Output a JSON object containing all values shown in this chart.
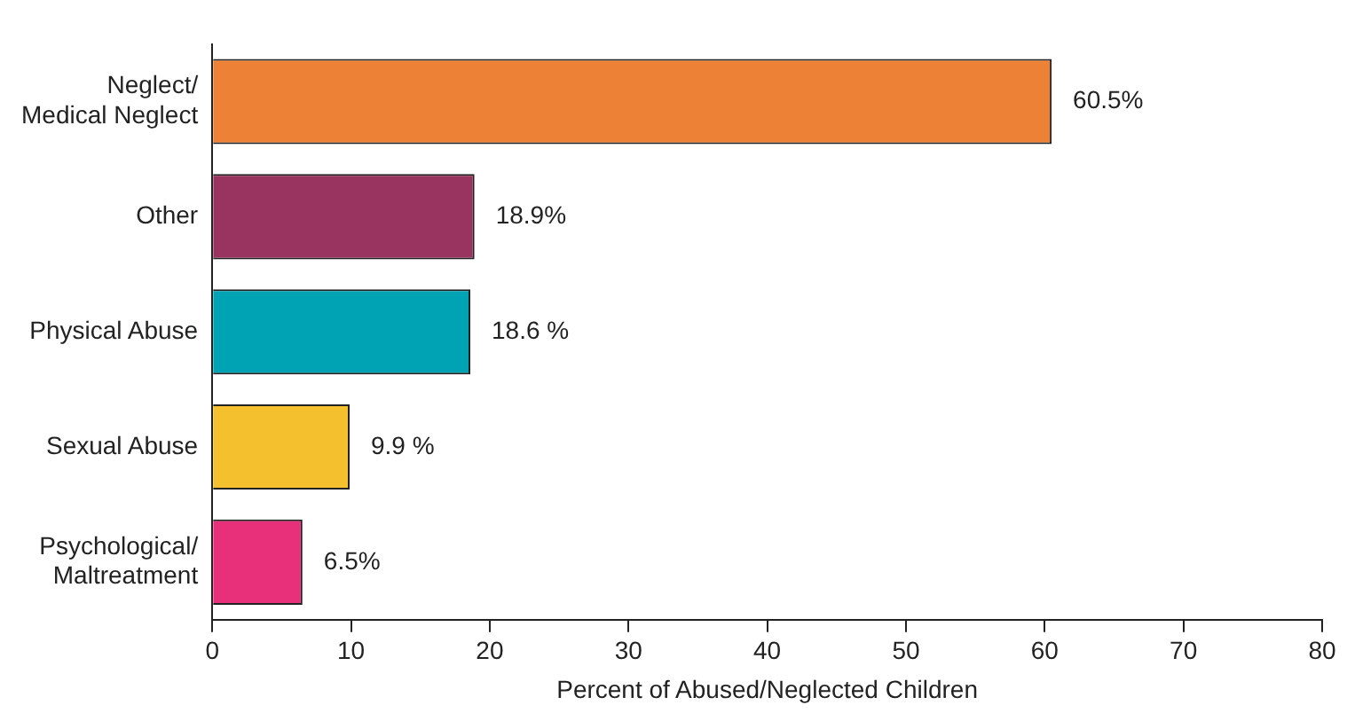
{
  "chart_data": {
    "type": "bar",
    "orientation": "horizontal",
    "xlabel": "Percent of Abused/Neglected Children",
    "categories": [
      "Neglect/\nMedical Neglect",
      "Other",
      "Physical Abuse",
      "Sexual Abuse",
      "Psychological/\nMaltreatment"
    ],
    "values": [
      60.5,
      18.9,
      18.6,
      9.9,
      6.5
    ],
    "colors": [
      "#ed8136",
      "#993360",
      "#00a3b4",
      "#f4c02e",
      "#e8307a"
    ],
    "value_labels": [
      "60.5%",
      "18.9%",
      "18.6 %",
      "9.9 %",
      "6.5%"
    ],
    "xlim": [
      0,
      80
    ],
    "xticks": [
      0,
      10,
      20,
      30,
      40,
      50,
      60,
      70,
      80
    ],
    "grid": false,
    "legend": false
  }
}
